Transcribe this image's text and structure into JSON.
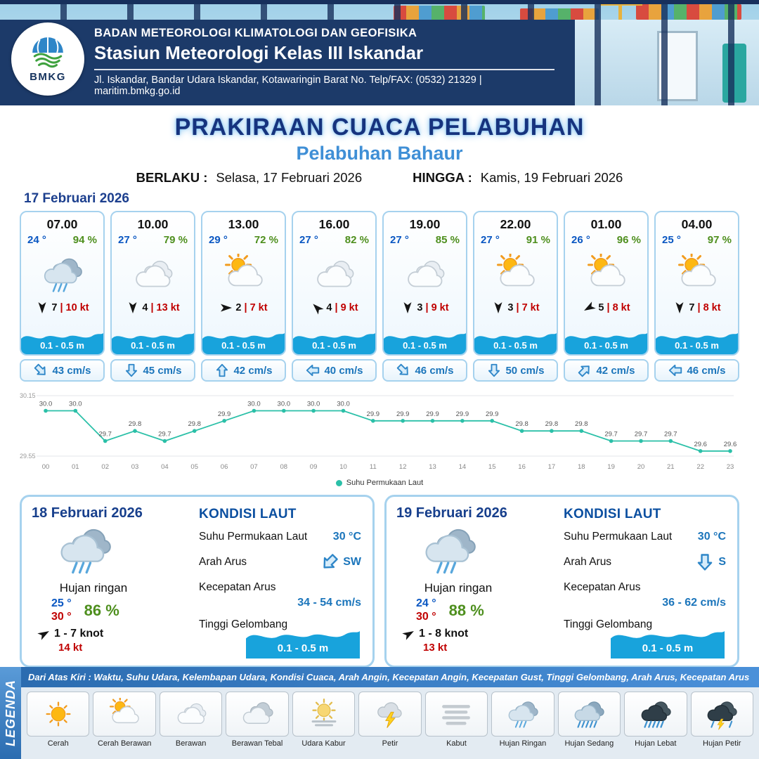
{
  "header": {
    "agency": "BADAN METEOROLOGI KLIMATOLOGI DAN GEOFISIKA",
    "station": "Stasiun Meteorologi Kelas III Iskandar",
    "address": "Jl. Iskandar, Bandar Udara Iskandar, Kotawaringin Barat No. Telp/FAX: (0532) 21329 | maritim.bmkg.go.id",
    "logo_text": "BMKG"
  },
  "title": {
    "main": "PRAKIRAAN CUACA PELABUHAN",
    "port": "Pelabuhan Bahaur",
    "berlaku_label": "BERLAKU :",
    "berlaku_value": "Selasa, 17 Februari 2026",
    "hingga_label": "HINGGA :",
    "hingga_value": "Kamis, 19 Februari 2026"
  },
  "forecast_date": "17 Februari 2026",
  "hourly": [
    {
      "time": "07.00",
      "temp": "24 °",
      "rh": "94 %",
      "icon": "hujan-ringan",
      "wind_dir_deg": 180,
      "wind_speed": "7",
      "gust": "10 kt",
      "wave": "0.1 - 0.5 m",
      "current_dir_deg": 135,
      "current": "43 cm/s"
    },
    {
      "time": "10.00",
      "temp": "27 °",
      "rh": "79 %",
      "icon": "berawan",
      "wind_dir_deg": 180,
      "wind_speed": "4",
      "gust": "13 kt",
      "wave": "0.1 - 0.5 m",
      "current_dir_deg": 180,
      "current": "45 cm/s"
    },
    {
      "time": "13.00",
      "temp": "29 °",
      "rh": "72 %",
      "icon": "cerah-berawan",
      "wind_dir_deg": 90,
      "wind_speed": "2",
      "gust": "7 kt",
      "wave": "0.1 - 0.5 m",
      "current_dir_deg": 0,
      "current": "42 cm/s"
    },
    {
      "time": "16.00",
      "temp": "27 °",
      "rh": "82 %",
      "icon": "berawan",
      "wind_dir_deg": 315,
      "wind_speed": "4",
      "gust": "9 kt",
      "wave": "0.1 - 0.5 m",
      "current_dir_deg": 270,
      "current": "40 cm/s"
    },
    {
      "time": "19.00",
      "temp": "27 °",
      "rh": "85 %",
      "icon": "berawan",
      "wind_dir_deg": 180,
      "wind_speed": "3",
      "gust": "9 kt",
      "wave": "0.1 - 0.5 m",
      "current_dir_deg": 135,
      "current": "46 cm/s"
    },
    {
      "time": "22.00",
      "temp": "27 °",
      "rh": "91 %",
      "icon": "cerah-berawan",
      "wind_dir_deg": 180,
      "wind_speed": "3",
      "gust": "7 kt",
      "wave": "0.1 - 0.5 m",
      "current_dir_deg": 180,
      "current": "50 cm/s"
    },
    {
      "time": "01.00",
      "temp": "26 °",
      "rh": "96 %",
      "icon": "cerah-berawan",
      "wind_dir_deg": 240,
      "wind_speed": "5",
      "gust": "8 kt",
      "wave": "0.1 - 0.5 m",
      "current_dir_deg": 45,
      "current": "42 cm/s"
    },
    {
      "time": "04.00",
      "temp": "25 °",
      "rh": "97 %",
      "icon": "cerah-berawan",
      "wind_dir_deg": 180,
      "wind_speed": "7",
      "gust": "8 kt",
      "wave": "0.1 - 0.5 m",
      "current_dir_deg": 270,
      "current": "46 cm/s"
    }
  ],
  "chart_data": {
    "type": "line",
    "title": "",
    "series_name": "Suhu Permukaan Laut",
    "x": [
      "00",
      "01",
      "02",
      "03",
      "04",
      "05",
      "06",
      "07",
      "08",
      "09",
      "10",
      "11",
      "12",
      "13",
      "14",
      "15",
      "16",
      "17",
      "18",
      "19",
      "20",
      "21",
      "22",
      "23"
    ],
    "values": [
      30.0,
      30.0,
      29.7,
      29.8,
      29.7,
      29.8,
      29.9,
      30.0,
      30.0,
      30.0,
      30.0,
      29.9,
      29.9,
      29.9,
      29.9,
      29.9,
      29.8,
      29.8,
      29.8,
      29.7,
      29.7,
      29.7,
      29.6,
      29.6
    ],
    "ylim": [
      29.55,
      30.15
    ],
    "line_color": "#2BC0A8",
    "legend_position": "bottom",
    "grid": false
  },
  "daily": [
    {
      "date": "18 Februari 2026",
      "icon": "hujan-ringan",
      "condition": "Hujan ringan",
      "temp_min": "25 °",
      "temp_max": "30 °",
      "rh": "86 %",
      "wind_dir_deg": 60,
      "wind_range": "1 - 7 knot",
      "gust": "14 kt",
      "sea": {
        "title": "KONDISI LAUT",
        "sst_label": "Suhu Permukaan Laut",
        "sst": "30 °C",
        "current_dir_label": "Arah Arus",
        "current_dir": "SW",
        "current_dir_deg": 225,
        "current_speed_label": "Kecepatan Arus",
        "current_speed": "34  - 54 cm/s",
        "wave_label": "Tinggi Gelombang",
        "wave": "0.1 - 0.5 m"
      }
    },
    {
      "date": "19 Februari 2026",
      "icon": "hujan-ringan",
      "condition": "Hujan ringan",
      "temp_min": "24 °",
      "temp_max": "30 °",
      "rh": "88 %",
      "wind_dir_deg": 60,
      "wind_range": "1  - 8 knot",
      "gust": "13 kt",
      "sea": {
        "title": "KONDISI LAUT",
        "sst_label": "Suhu Permukaan Laut",
        "sst": "30 °C",
        "current_dir_label": "Arah Arus",
        "current_dir": "S",
        "current_dir_deg": 180,
        "current_speed_label": "Kecepatan Arus",
        "current_speed": "36 - 62 cm/s",
        "wave_label": "Tinggi Gelombang",
        "wave": "0.1 - 0.5 m"
      }
    }
  ],
  "legend": {
    "title": "LEGENDA",
    "note": "Dari Atas Kiri : Waktu, Suhu Udara, Kelembapan Udara, Kondisi Cuaca, Arah Angin, Kecepatan Angin, Kecepatan Gust, Tinggi Gelombang, Arah Arus, Kecepatan Arus",
    "items": [
      {
        "label": "Cerah",
        "icon": "cerah"
      },
      {
        "label": "Cerah Berawan",
        "icon": "cerah-berawan"
      },
      {
        "label": "Berawan",
        "icon": "berawan"
      },
      {
        "label": "Berawan Tebal",
        "icon": "berawan-tebal"
      },
      {
        "label": "Udara Kabur",
        "icon": "udara-kabur"
      },
      {
        "label": "Petir",
        "icon": "petir"
      },
      {
        "label": "Kabut",
        "icon": "kabut"
      },
      {
        "label": "Hujan Ringan",
        "icon": "hujan-ringan"
      },
      {
        "label": "Hujan Sedang",
        "icon": "hujan-sedang"
      },
      {
        "label": "Hujan Lebat",
        "icon": "hujan-lebat"
      },
      {
        "label": "Hujan Petir",
        "icon": "hujan-petir"
      }
    ]
  },
  "colors": {
    "header_navy": "#1C3A69",
    "title_blue": "#16337E",
    "port_blue": "#3F8FD6",
    "temp_blue": "#0A57C2",
    "humidity_green": "#4E8F1E",
    "gust_red": "#C00000",
    "wave_blue": "#18A3DC",
    "chart_teal": "#2BC0A8"
  }
}
